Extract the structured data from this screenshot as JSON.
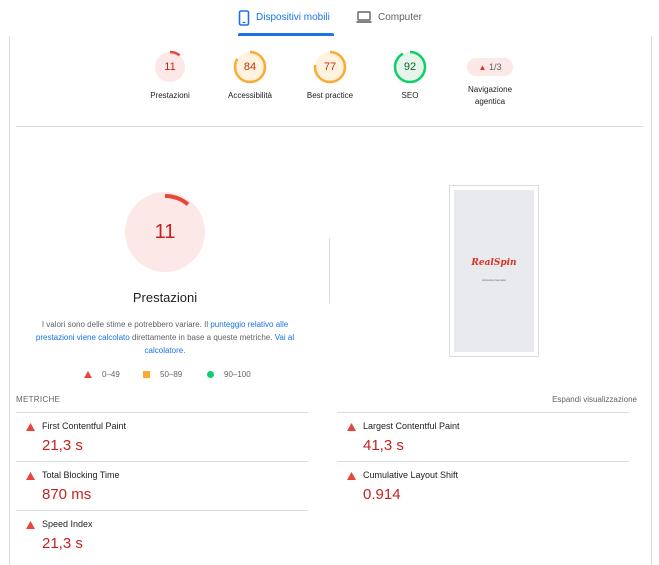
{
  "tabs": {
    "mobile": {
      "label": "Dispositivi mobili",
      "icon": "smartphone-icon",
      "active": true
    },
    "desktop": {
      "label": "Computer",
      "icon": "laptop-icon",
      "active": false
    }
  },
  "categories": [
    {
      "score": "11",
      "label": "Prestazioni",
      "color": "#c5221f",
      "fill": 0.11
    },
    {
      "score": "84",
      "label": "Accessibilità",
      "color": "#c33300",
      "fill": 0.84
    },
    {
      "score": "77",
      "label": "Best practice",
      "color": "#c33300",
      "fill": 0.77
    },
    {
      "score": "92",
      "label": "SEO",
      "color": "#0d652d",
      "fill": 0.92
    }
  ],
  "agentic": {
    "value": "1/3",
    "label_line1": "Navigazione",
    "label_line2": "agentica",
    "icon": "warning-triangle-icon"
  },
  "performance": {
    "score": "11",
    "fill": 0.11,
    "title": "Prestazioni",
    "desc_part1": "I valori sono delle stime e potrebbero variare. Il ",
    "desc_link1": "punteggio relativo alle prestazioni viene calcolato",
    "desc_part2": " direttamente in base a queste metriche. ",
    "desc_link2": "Vai al calcolatore",
    "desc_end": "."
  },
  "legend": {
    "poor": "0–49",
    "average": "50–89",
    "good": "90–100"
  },
  "screenshot": {
    "logo": "RealSpin",
    "subtitle": "Accesso riservato"
  },
  "metrics": {
    "title": "METRICHE",
    "expand_label": "Espandi visualizzazione",
    "items": [
      {
        "name": "First Contentful Paint",
        "value": "21,3 s"
      },
      {
        "name": "Largest Contentful Paint",
        "value": "41,3 s"
      },
      {
        "name": "Total Blocking Time",
        "value": "870 ms"
      },
      {
        "name": "Cumulative Layout Shift",
        "value": "0.914"
      },
      {
        "name": "Speed Index",
        "value": "21,3 s"
      }
    ]
  },
  "colors": {
    "fail": "#c5221f",
    "fail_bg": "#fce8e6",
    "average": "#c33300",
    "average_arc": "#fbaa33",
    "average_bg": "#fff3e0",
    "pass": "#0d652d",
    "pass_arc": "#0cce6b",
    "pass_bg": "#e6f4ea",
    "accent": "#1a73e8"
  }
}
